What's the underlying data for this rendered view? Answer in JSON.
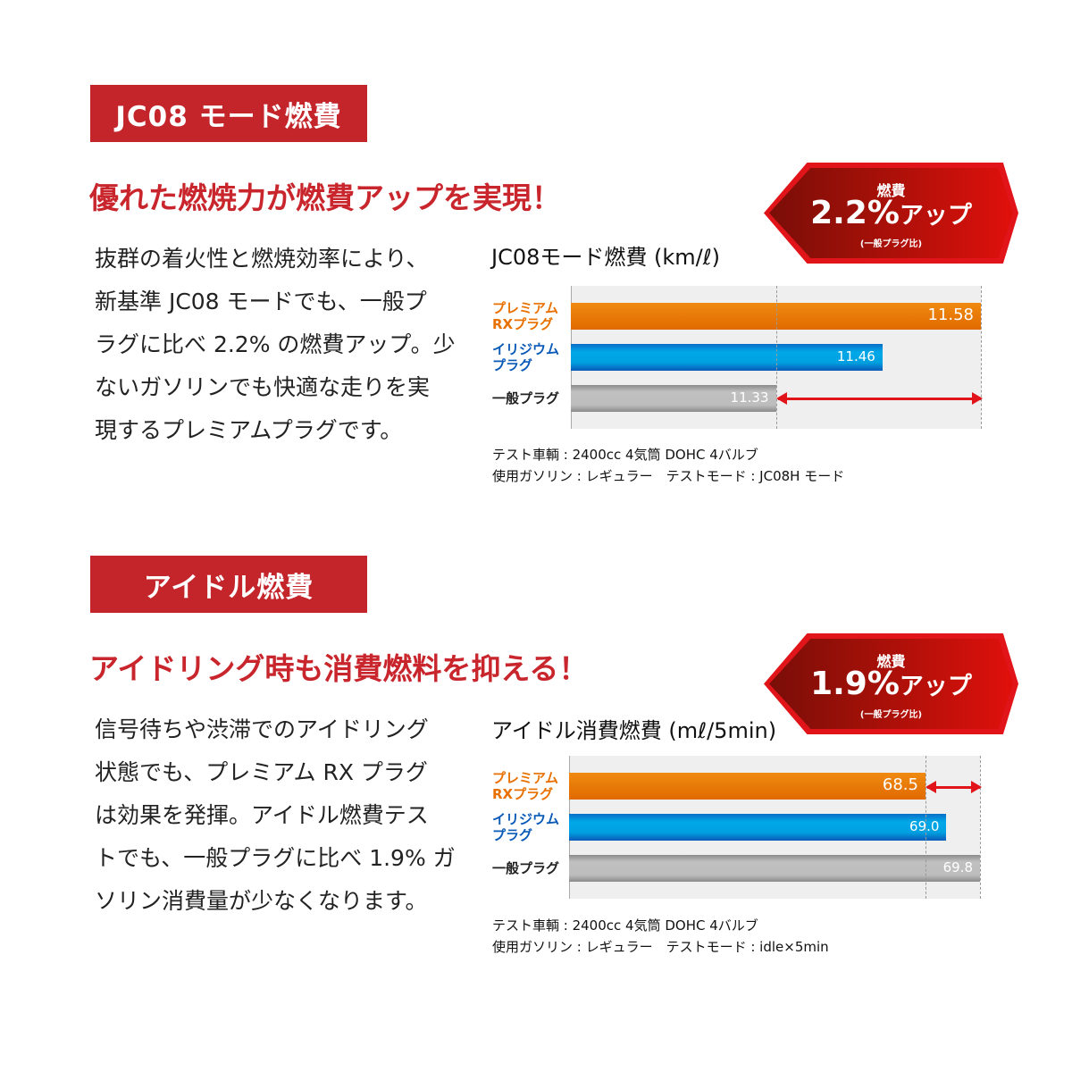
{
  "sections": [
    {
      "title": "JC08 モード燃費",
      "headline": "優れた燃焼力が燃費アップを実現！",
      "body_lines": [
        "抜群の着火性と燃焼効率により、",
        "新基準 JC08 モードでも、一般プ",
        "ラグに比べ 2.2% の燃費アップ。少",
        "ないガソリンでも快適な走りを実",
        "現するプレミアムプラグです。"
      ],
      "badge": {
        "label": "燃費",
        "value": "2.2%",
        "suffix": "アップ",
        "note": "(一般プラグ比)"
      },
      "notes": [
        "テスト車輌 : 2400cc 4気筒 DOHC 4バルブ",
        "使用ガソリン : レギュラー　テストモード : JC08H モード"
      ]
    },
    {
      "title": "アイドル燃費",
      "headline": "アイドリング時も消費燃料を抑える！",
      "body_lines": [
        "信号待ちや渋滞でのアイドリング",
        "状態でも、プレミアム RX プラグ",
        "は効果を発揮。アイドル燃費テス",
        "トでも、一般プラグに比べ 1.9% ガ",
        "ソリン消費量が少なくなります。"
      ],
      "badge": {
        "label": "燃費",
        "value": "1.9%",
        "suffix": "アップ",
        "note": "(一般プラグ比)"
      },
      "notes": [
        "テスト車輌 : 2400cc 4気筒 DOHC 4バルブ",
        "使用ガソリン : レギュラー　テストモード : idle×5min"
      ]
    }
  ],
  "colors": {
    "accent": "#c3252b",
    "premium": "#e87000",
    "iridium": "#00a0e0",
    "standard": "#bdbdbd"
  },
  "chart_data": [
    {
      "type": "bar",
      "orientation": "horizontal",
      "title": "JC08モード燃費 (km/ℓ)",
      "categories": [
        "プレミアム RXプラグ",
        "イリジウム プラグ",
        "一般プラグ"
      ],
      "category_lines": [
        [
          "プレミアム",
          "RXプラグ"
        ],
        [
          "イリジウム",
          "プラグ"
        ],
        [
          "一般プラグ"
        ]
      ],
      "values": [
        11.58,
        11.46,
        11.33
      ],
      "labels": [
        "11.58",
        "11.46",
        "11.33"
      ],
      "xlim": [
        11.08,
        11.58
      ]
    },
    {
      "type": "bar",
      "orientation": "horizontal",
      "title": "アイドル消費燃費 (mℓ/5min)",
      "categories": [
        "プレミアム RXプラグ",
        "イリジウム プラグ",
        "一般プラグ"
      ],
      "category_lines": [
        [
          "プレミアム",
          "RXプラグ"
        ],
        [
          "イリジウム",
          "プラグ"
        ],
        [
          "一般プラグ"
        ]
      ],
      "values": [
        68.5,
        69.0,
        69.8
      ],
      "labels": [
        "68.5",
        "69.0",
        "69.8"
      ],
      "xlim": [
        60.0,
        69.8
      ]
    }
  ]
}
